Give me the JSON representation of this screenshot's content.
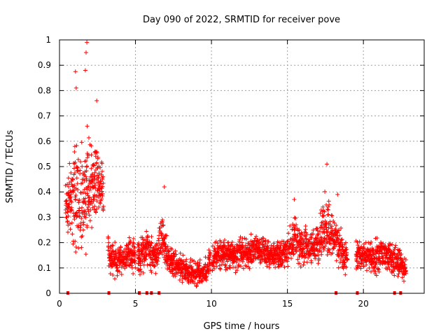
{
  "chart_data": {
    "type": "scatter",
    "title": "Day 090 of 2022, SRMTID for receiver pove",
    "xlabel": "GPS time / hours",
    "ylabel": "SRMTID / TECUs",
    "xlim": [
      0,
      24
    ],
    "ylim": [
      0,
      1
    ],
    "xticks": [
      0,
      5,
      10,
      15,
      20
    ],
    "yticks": [
      0,
      0.1,
      0.2,
      0.3,
      0.4,
      0.5,
      0.6,
      0.7,
      0.8,
      0.9,
      1
    ],
    "xtick_labels": [
      "0",
      "5",
      "10",
      "15",
      "20"
    ],
    "ytick_labels": [
      "0",
      "0.1",
      "0.2",
      "0.3",
      "0.4",
      "0.5",
      "0.6",
      "0.7",
      "0.8",
      "0.9",
      "1"
    ],
    "grid": true,
    "marker": "plus",
    "color": "#ff0000",
    "envelope": {
      "description": "approximate mean level and spread of SRMTID values over the day (data units)",
      "x": [
        0.4,
        0.6,
        1.0,
        1.5,
        2.0,
        2.5,
        2.9,
        3.3,
        3.8,
        4.3,
        4.7,
        5.3,
        5.8,
        6.3,
        6.8,
        7.2,
        8.0,
        8.8,
        9.5,
        10.0,
        10.5,
        11.0,
        11.5,
        12.0,
        12.5,
        13.0,
        13.5,
        14.0,
        14.5,
        15.0,
        15.5,
        16.0,
        16.5,
        17.0,
        17.5,
        17.8,
        18.2,
        18.6,
        18.9,
        19.7,
        20.3,
        20.8,
        21.3,
        21.8,
        22.3,
        22.8
      ],
      "mean": [
        0.36,
        0.34,
        0.4,
        0.38,
        0.45,
        0.44,
        0.4,
        0.14,
        0.13,
        0.14,
        0.16,
        0.14,
        0.18,
        0.14,
        0.22,
        0.13,
        0.1,
        0.08,
        0.08,
        0.13,
        0.16,
        0.15,
        0.14,
        0.16,
        0.16,
        0.18,
        0.16,
        0.15,
        0.15,
        0.17,
        0.22,
        0.18,
        0.18,
        0.2,
        0.26,
        0.24,
        0.2,
        0.16,
        0.14,
        0.15,
        0.15,
        0.14,
        0.16,
        0.14,
        0.13,
        0.1
      ],
      "spread": [
        0.09,
        0.1,
        0.16,
        0.2,
        0.16,
        0.14,
        0.1,
        0.06,
        0.05,
        0.05,
        0.06,
        0.06,
        0.07,
        0.05,
        0.09,
        0.05,
        0.04,
        0.04,
        0.04,
        0.05,
        0.05,
        0.05,
        0.05,
        0.05,
        0.05,
        0.05,
        0.05,
        0.05,
        0.05,
        0.05,
        0.07,
        0.06,
        0.06,
        0.07,
        0.11,
        0.1,
        0.08,
        0.06,
        0.05,
        0.05,
        0.05,
        0.06,
        0.06,
        0.05,
        0.05,
        0.04
      ]
    },
    "data_gaps_hours": [
      [
        2.9,
        3.2
      ],
      [
        5.0,
        5.15
      ],
      [
        9.95,
        10.05
      ],
      [
        18.95,
        19.5
      ],
      [
        22.95,
        24
      ]
    ],
    "peaks": [
      {
        "x": 1.8,
        "y": 0.99
      },
      {
        "x": 1.75,
        "y": 0.95
      },
      {
        "x": 1.7,
        "y": 0.88
      },
      {
        "x": 1.05,
        "y": 0.875
      },
      {
        "x": 1.1,
        "y": 0.81
      },
      {
        "x": 2.45,
        "y": 0.76
      },
      {
        "x": 6.9,
        "y": 0.42
      },
      {
        "x": 17.6,
        "y": 0.51
      },
      {
        "x": 15.45,
        "y": 0.37
      },
      {
        "x": 18.3,
        "y": 0.39
      }
    ],
    "zero_markers_x": [
      0.55,
      3.25,
      5.25,
      5.75,
      6.05,
      6.55,
      18.2,
      19.6,
      22.05,
      22.45
    ]
  }
}
